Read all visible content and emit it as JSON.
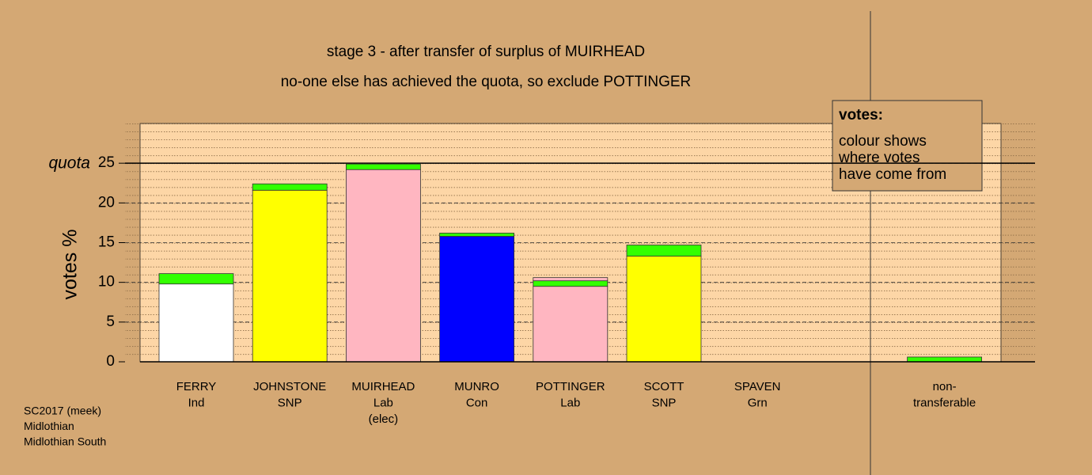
{
  "chart_data": {
    "type": "bar",
    "title": "stage 3 - after transfer of surplus of MUIRHEAD",
    "subtitle": "no-one else has achieved the quota, so exclude POTTINGER",
    "y_label": "votes %",
    "categories": [
      [
        "FERRY",
        "Ind"
      ],
      [
        "JOHNSTONE",
        "SNP"
      ],
      [
        "MUIRHEAD",
        "Lab",
        "(elec)"
      ],
      [
        "MUNRO",
        "Con"
      ],
      [
        "POTTINGER",
        "Lab"
      ],
      [
        "SCOTT",
        "SNP"
      ],
      [
        "SPAVEN",
        "Grn"
      ],
      [
        "non-",
        "transferable"
      ]
    ],
    "series": [
      {
        "colors": [
          "#ffffff",
          "#ffff00",
          "#ffb6c1",
          "#0000ff",
          "#ffb6c1",
          "#ffff00",
          "#ffffff",
          "#33ff00"
        ],
        "values": [
          9.8,
          21.6,
          24.2,
          15.8,
          9.5,
          13.3,
          0,
          0
        ]
      },
      {
        "color": "#33ff00",
        "values": [
          1.3,
          0.8,
          0.7,
          0.4,
          0.7,
          1.4,
          0,
          0.6
        ]
      },
      {
        "color": "#ffb6c1",
        "values": [
          0,
          0,
          0,
          0,
          0.4,
          0,
          0,
          0
        ]
      }
    ],
    "ylim": [
      0,
      30
    ],
    "yticks": [
      0,
      5,
      10,
      15,
      20,
      25
    ],
    "grid": true,
    "quota": {
      "label": "quota",
      "value": 25
    },
    "note": {
      "heading": "votes:",
      "lines": [
        "colour shows",
        "where votes",
        "have come from"
      ]
    },
    "footer": [
      "SC2017 (meek)",
      "Midlothian",
      "Midlothian South"
    ]
  }
}
